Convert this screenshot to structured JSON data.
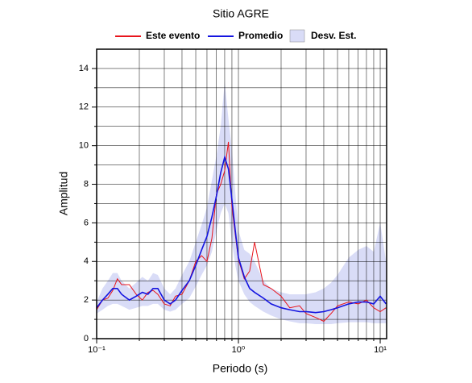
{
  "chart_data": {
    "type": "line",
    "title": "Sitio AGRE",
    "x_label": "Periodo (s)",
    "y_label": "Amplitud",
    "xscale": "log",
    "grid": true,
    "xlim": [
      0.1,
      11.1
    ],
    "ylim": [
      0,
      15
    ],
    "xticks": [
      {
        "value": 0.1,
        "label": "10⁻¹"
      },
      {
        "value": 1,
        "label": "10⁰"
      },
      {
        "value": 10,
        "label": "10¹"
      }
    ],
    "xminor": [
      0.2,
      0.3,
      0.4,
      0.5,
      0.6,
      0.7,
      0.8,
      0.9,
      2,
      3,
      4,
      5,
      6,
      7,
      8,
      9
    ],
    "yticks": [
      0,
      2,
      4,
      6,
      8,
      10,
      12,
      14
    ],
    "yminor": [
      1,
      3,
      5,
      7,
      9,
      11,
      13
    ],
    "x": [
      0.1,
      0.11,
      0.12,
      0.13,
      0.14,
      0.15,
      0.17,
      0.19,
      0.21,
      0.23,
      0.25,
      0.27,
      0.3,
      0.33,
      0.36,
      0.4,
      0.45,
      0.5,
      0.55,
      0.6,
      0.65,
      0.7,
      0.75,
      0.8,
      0.85,
      0.9,
      0.95,
      1.0,
      1.1,
      1.2,
      1.3,
      1.5,
      1.7,
      2.0,
      2.3,
      2.7,
      3.0,
      3.5,
      4.0,
      4.5,
      5,
      6,
      7,
      8,
      9,
      10,
      11
    ],
    "band": {
      "name": "Desv. Est.",
      "color": "#d9dcf7",
      "lower": [
        1.3,
        1.5,
        1.7,
        1.8,
        1.8,
        1.7,
        1.5,
        1.6,
        1.7,
        1.7,
        1.8,
        1.8,
        1.5,
        1.4,
        1.5,
        1.8,
        2.1,
        2.7,
        3.3,
        3.8,
        4.5,
        5.6,
        6.5,
        7.0,
        6.5,
        5.0,
        3.8,
        3.0,
        2.3,
        1.9,
        1.7,
        1.4,
        1.2,
        1.0,
        0.9,
        0.8,
        0.8,
        0.75,
        0.75,
        0.75,
        0.8,
        0.85,
        0.85,
        0.85,
        0.8,
        0.8,
        0.8
      ],
      "upper": [
        1.9,
        2.6,
        3.0,
        3.4,
        3.4,
        3.0,
        2.6,
        2.9,
        3.2,
        3.0,
        3.4,
        3.3,
        2.6,
        2.3,
        2.6,
        3.3,
        4.0,
        5.0,
        5.9,
        6.8,
        8.2,
        9.5,
        11.0,
        13.3,
        11.4,
        9.8,
        7.6,
        5.6,
        4.6,
        4.4,
        4.0,
        3.0,
        2.6,
        2.4,
        2.3,
        2.3,
        2.3,
        2.4,
        2.6,
        2.9,
        3.3,
        4.2,
        4.6,
        4.8,
        4.5,
        6.0,
        4.0
      ]
    },
    "series": [
      {
        "name": "Este evento",
        "color": "#e8141c",
        "values": [
          1.5,
          2.0,
          2.1,
          2.5,
          3.1,
          2.8,
          2.8,
          2.3,
          2.0,
          2.4,
          2.5,
          2.3,
          1.8,
          1.7,
          2.2,
          2.3,
          3.0,
          4.0,
          4.3,
          4.0,
          5.2,
          7.5,
          8.0,
          8.7,
          10.2,
          6.8,
          5.4,
          4.1,
          3.1,
          3.5,
          5.0,
          2.8,
          2.6,
          2.2,
          1.6,
          1.7,
          1.3,
          1.1,
          0.9,
          1.3,
          1.7,
          1.9,
          1.8,
          2.0,
          1.6,
          1.4,
          1.6
        ]
      },
      {
        "name": "Promedio",
        "color": "#1414e0",
        "values": [
          1.6,
          2.0,
          2.3,
          2.6,
          2.6,
          2.3,
          2.0,
          2.2,
          2.4,
          2.3,
          2.6,
          2.6,
          2.0,
          1.8,
          2.0,
          2.5,
          3.0,
          3.8,
          4.6,
          5.3,
          6.3,
          7.4,
          8.6,
          9.4,
          8.8,
          7.2,
          5.6,
          4.2,
          3.2,
          2.6,
          2.4,
          2.1,
          1.8,
          1.6,
          1.5,
          1.4,
          1.4,
          1.35,
          1.4,
          1.5,
          1.6,
          1.8,
          1.9,
          1.9,
          1.8,
          2.2,
          1.8
        ]
      }
    ]
  }
}
